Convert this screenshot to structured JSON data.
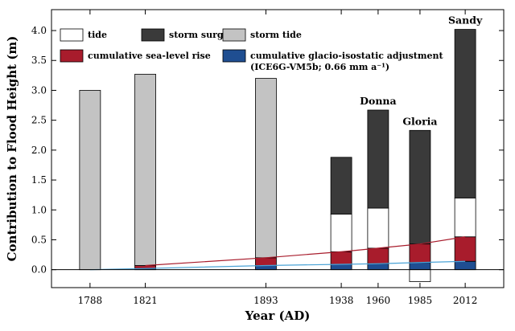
{
  "chart_data": {
    "type": "bar",
    "stacked": true,
    "xlabel": "Year (AD)",
    "ylabel": "Contribution to Flood Height (m)",
    "ylim": [
      -0.3,
      4.35
    ],
    "yticks": [
      "0.0",
      "0.5",
      "1.0",
      "1.5",
      "2.0",
      "2.5",
      "3.0",
      "3.5",
      "4.0"
    ],
    "xlim": [
      1765,
      2035
    ],
    "x": [
      1788,
      1821,
      1893,
      1938,
      1960,
      1985,
      2012
    ],
    "categories": [
      "1788",
      "1821",
      "1893",
      "1938",
      "1960",
      "1985",
      "2012"
    ],
    "colors": {
      "tide": "#ffffff",
      "storm_surge": "#3a3a3a",
      "storm_tide": "#c3c3c3",
      "sea_level_rise": "#a81c2c",
      "gia": "#1f4e91",
      "srl_line": "#a81c2c",
      "gia_line": "#4aa3d6"
    },
    "legend": [
      {
        "key": "tide",
        "label": "tide"
      },
      {
        "key": "storm_surge",
        "label": "storm surge"
      },
      {
        "key": "storm_tide",
        "label": "storm tide"
      },
      {
        "key": "sea_level_rise",
        "label": "cumulative sea-level rise"
      },
      {
        "key": "gia",
        "label": "cumulative glacio-isostatic adjustment",
        "label2": "(ICE6G-VM5b; 0.66 mm a⁻¹)"
      }
    ],
    "bars": [
      {
        "x": 1788,
        "gia": 0.0,
        "sea_level_rise": 0.0,
        "storm_tide": 3.0,
        "tide": 0,
        "storm_surge": 0,
        "negative_tide": 0
      },
      {
        "x": 1821,
        "gia": 0.02,
        "sea_level_rise": 0.05,
        "storm_tide": 3.2,
        "tide": 0,
        "storm_surge": 0,
        "negative_tide": 0
      },
      {
        "x": 1893,
        "gia": 0.07,
        "sea_level_rise": 0.13,
        "storm_tide": 3.0,
        "tide": 0,
        "storm_surge": 0,
        "negative_tide": 0
      },
      {
        "x": 1938,
        "gia": 0.09,
        "sea_level_rise": 0.21,
        "storm_tide": 0,
        "tide": 0.63,
        "storm_surge": 0.95,
        "negative_tide": 0
      },
      {
        "x": 1960,
        "gia": 0.1,
        "sea_level_rise": 0.26,
        "storm_tide": 0,
        "tide": 0.67,
        "storm_surge": 1.64,
        "negative_tide": 0
      },
      {
        "x": 1985,
        "gia": 0.12,
        "sea_level_rise": 0.31,
        "storm_tide": 0,
        "tide": 0,
        "storm_surge": 1.9,
        "negative_tide": 0.2
      },
      {
        "x": 2012,
        "gia": 0.14,
        "sea_level_rise": 0.41,
        "storm_tide": 0,
        "tide": 0.65,
        "storm_surge": 2.82,
        "negative_tide": 0
      }
    ],
    "srl_line": {
      "x": [
        1821,
        1893,
        1938,
        1960,
        1985,
        2012
      ],
      "y": [
        0.07,
        0.2,
        0.3,
        0.36,
        0.43,
        0.55
      ]
    },
    "gia_line": {
      "x": [
        1788,
        1821,
        1893,
        1938,
        1960,
        1985,
        2012
      ],
      "y": [
        0.0,
        0.02,
        0.07,
        0.09,
        0.1,
        0.12,
        0.14
      ]
    },
    "annotations": [
      {
        "x": 1960,
        "label": "Donna"
      },
      {
        "x": 1985,
        "label": "Gloria"
      },
      {
        "x": 2012,
        "label": "Sandy"
      }
    ]
  }
}
